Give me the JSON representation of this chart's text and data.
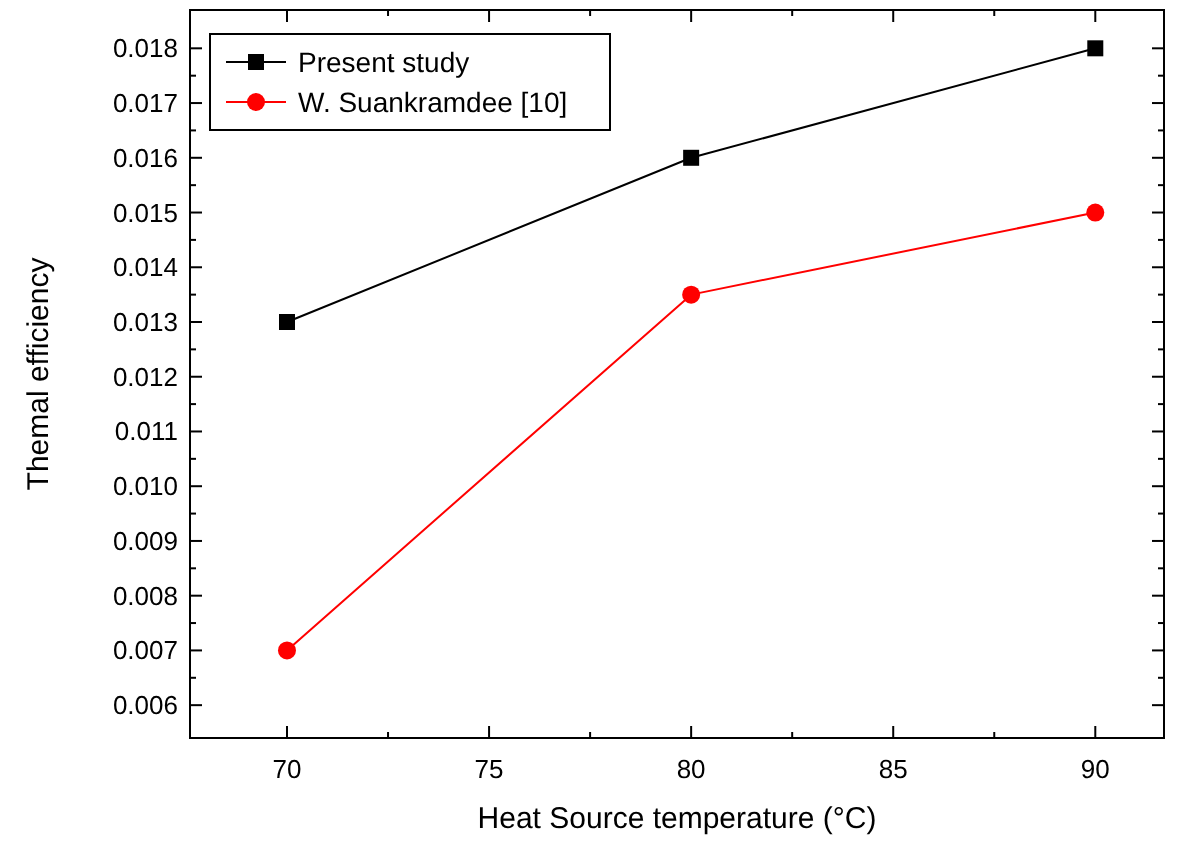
{
  "chart_data": {
    "type": "line",
    "xlabel": "Heat Source temperature (°C)",
    "ylabel": "Themal efficiency",
    "x": [
      70,
      80,
      90
    ],
    "series": [
      {
        "name": "Present study",
        "color": "#000000",
        "values": [
          0.013,
          0.016,
          0.018
        ],
        "marker": "square"
      },
      {
        "name": "W. Suankramdee [10]",
        "color": "#ff0000",
        "values": [
          0.007,
          0.0135,
          0.015
        ],
        "marker": "circle"
      }
    ],
    "xlim": [
      67.6,
      91.7
    ],
    "xticks": [
      70,
      75,
      80,
      85,
      90
    ],
    "ylim": [
      0.0054,
      0.0187
    ],
    "yticks": [
      {
        "value": 0.006,
        "label": "0.006"
      },
      {
        "value": 0.007,
        "label": "0.007"
      },
      {
        "value": 0.008,
        "label": "0.008"
      },
      {
        "value": 0.009,
        "label": "0.009"
      },
      {
        "value": 0.01,
        "label": "0.010"
      },
      {
        "value": 0.011,
        "label": "0.011"
      },
      {
        "value": 0.012,
        "label": "0.012"
      },
      {
        "value": 0.013,
        "label": "0.013"
      },
      {
        "value": 0.014,
        "label": "0.014"
      },
      {
        "value": 0.015,
        "label": "0.015"
      },
      {
        "value": 0.016,
        "label": "0.016"
      },
      {
        "value": 0.017,
        "label": "0.017"
      },
      {
        "value": 0.018,
        "label": "0.018"
      }
    ],
    "grid": false,
    "legend": "top left",
    "line_style": "solid"
  }
}
